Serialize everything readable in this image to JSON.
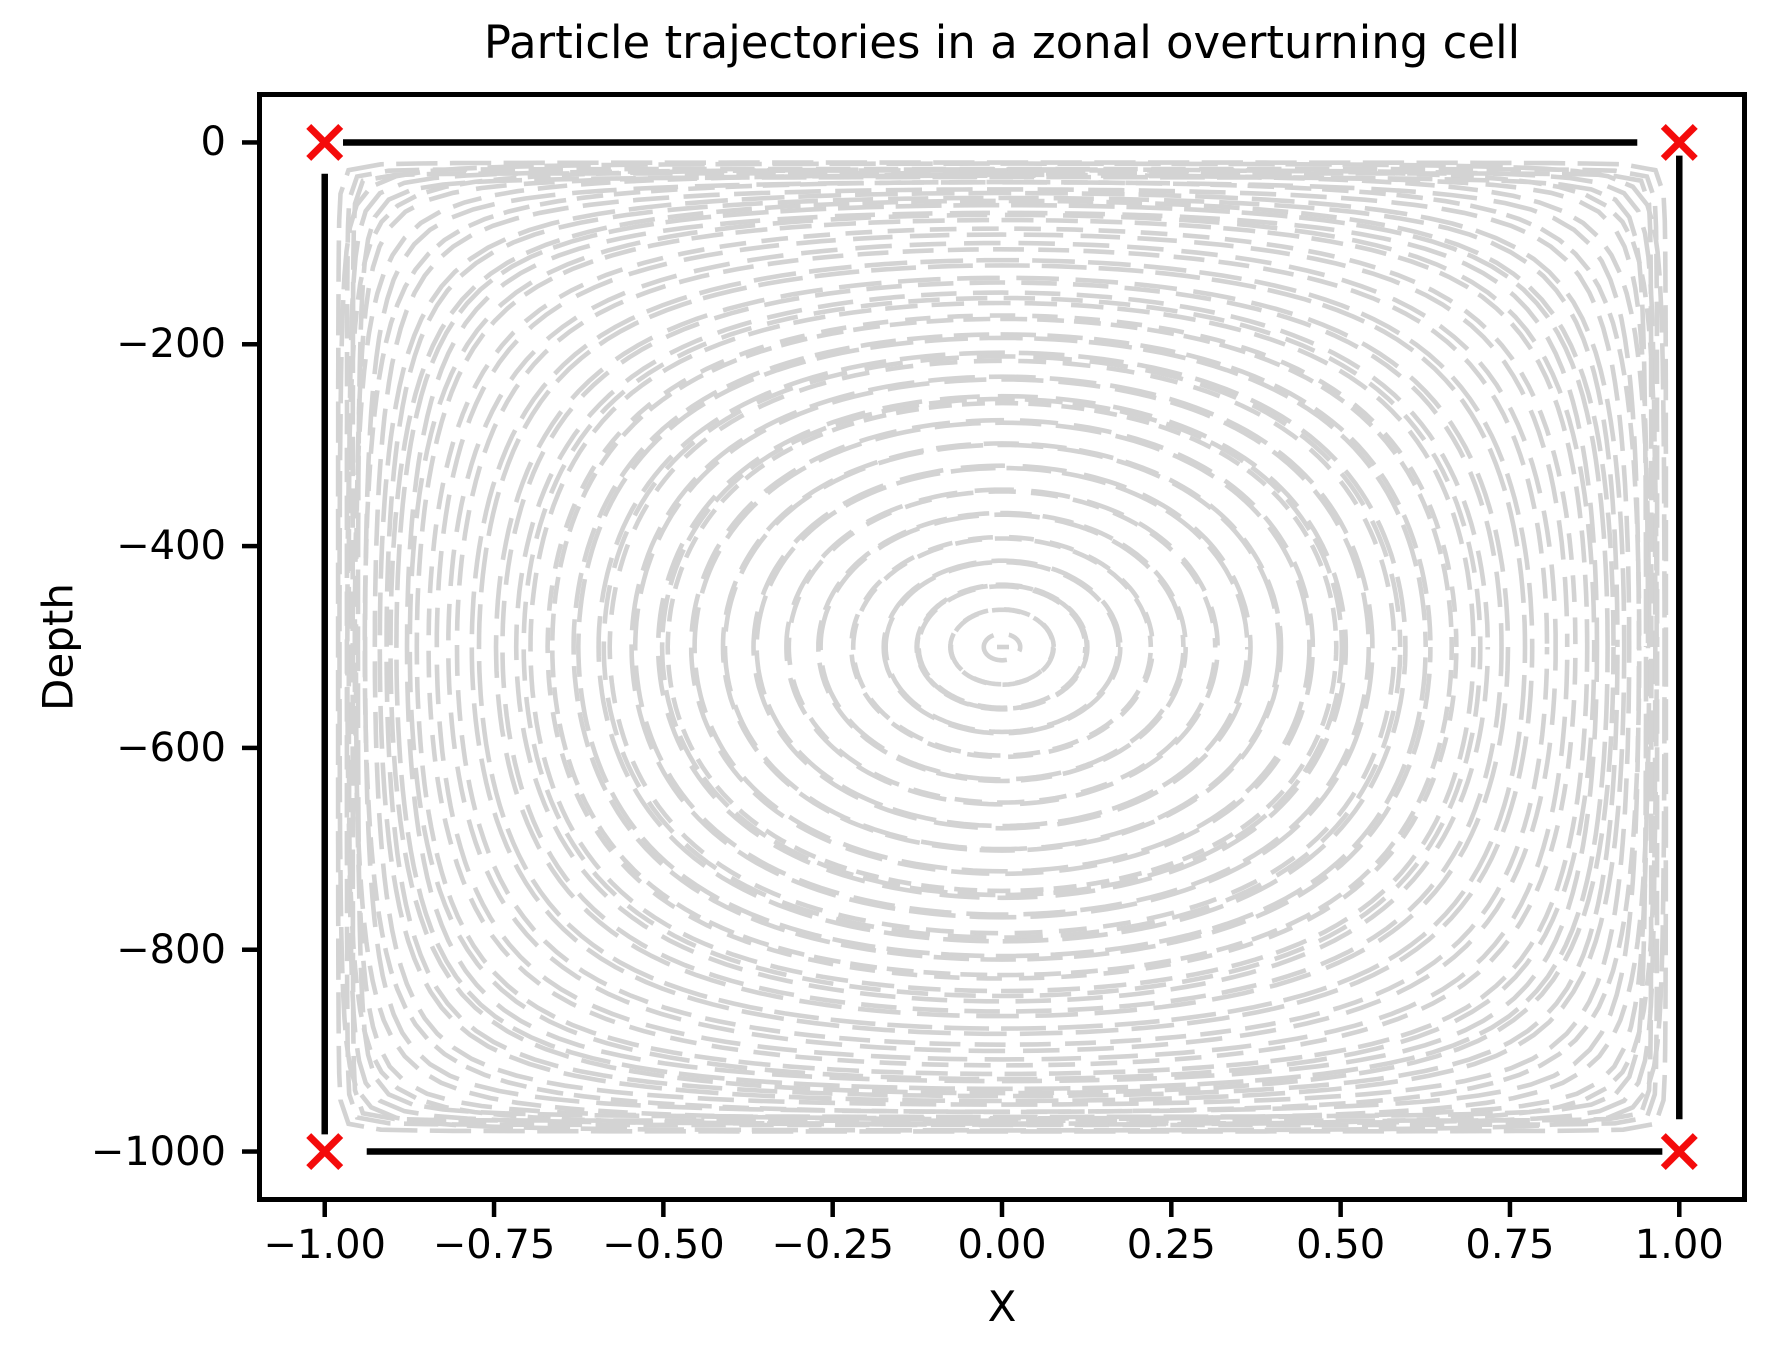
{
  "chart_data": {
    "type": "line",
    "title": "Particle trajectories in a zonal overturning cell",
    "xlabel": "X",
    "ylabel": "Depth",
    "xlim": [
      -1.1,
      1.1
    ],
    "ylim": [
      -1050,
      50
    ],
    "grid": false,
    "legend": "none",
    "x_ticks": [
      -1.0,
      -0.75,
      -0.5,
      -0.25,
      0.0,
      0.25,
      0.5,
      0.75,
      1.0
    ],
    "x_tick_labels": [
      "−1.00",
      "−0.75",
      "−0.50",
      "−0.25",
      "0.00",
      "0.25",
      "0.50",
      "0.75",
      "1.00"
    ],
    "y_ticks": [
      0,
      -200,
      -400,
      -600,
      -800,
      -1000
    ],
    "y_tick_labels": [
      "0",
      "−200",
      "−400",
      "−600",
      "−800",
      "−1000"
    ],
    "trajectories": {
      "description": "closed overturning streamlines of psi = sin(u)sin(v), dashed light gray loops circling the cell center",
      "center": [
        0,
        -500
      ],
      "x_extent": [
        -0.97,
        0.97
      ],
      "depth_extent": [
        -975,
        -25
      ],
      "n_loops": 28,
      "passes_per_loop": 2,
      "color": "#d3d3d3",
      "linewidth": 4.6,
      "dash_base": [
        30,
        14
      ],
      "seed": 7
    },
    "boundary_lines": {
      "color": "#000000",
      "linewidth": 6.5,
      "segments": [
        {
          "x1": -0.973,
          "z1": 0,
          "x2": 0.938,
          "z2": 0
        },
        {
          "x1": -0.938,
          "z1": -1000,
          "x2": 0.975,
          "z2": -1000
        },
        {
          "x1": -1,
          "z1": -31,
          "x2": -1,
          "z2": -983
        },
        {
          "x1": 1,
          "z1": -13,
          "x2": 1,
          "z2": -968
        }
      ]
    },
    "release_points": {
      "marker": "x",
      "color": "#f40b0b",
      "size": 32,
      "linewidth": 7,
      "points": [
        [
          -1,
          0
        ],
        [
          1,
          0
        ],
        [
          -1,
          -1000
        ],
        [
          1,
          -1000
        ]
      ]
    },
    "spine_color": "#000000",
    "spine_width": 5,
    "tick_length": 15,
    "tick_width": 4.5
  }
}
